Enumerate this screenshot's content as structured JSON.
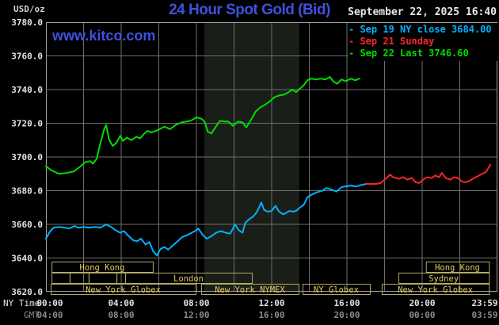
{
  "header": {
    "unit_label": "USD/oz",
    "title": "24 Hour Spot Gold (Bid)",
    "watermark": "www.kitco.com",
    "datetime": "September 22, 2025 16:40",
    "legend": [
      {
        "label": "- Sep 19 NY close 3684.00",
        "color": "#00b2ff"
      },
      {
        "label": "- Sep 21 Sunday",
        "color": "#ff2424"
      },
      {
        "label": "- Sep 22 Last 3746.60",
        "color": "#00dc00"
      }
    ]
  },
  "axes": {
    "x_row1_label": "NY Time",
    "x_row2_label": "GMT",
    "y_ticks": [
      {
        "value": 3780,
        "label": "3780.0"
      },
      {
        "value": 3760,
        "label": "3760.0"
      },
      {
        "value": 3740,
        "label": "3740.0"
      },
      {
        "value": 3720,
        "label": "3720.0"
      },
      {
        "value": 3700,
        "label": "3700.0"
      },
      {
        "value": 3680,
        "label": "3680.0"
      },
      {
        "value": 3660,
        "label": "3660.0"
      },
      {
        "value": 3640,
        "label": "3640.0"
      },
      {
        "value": 3620,
        "label": "3620.0"
      }
    ],
    "x_ticks": [
      {
        "t": 0,
        "ny": "00:00",
        "gmt": "04:00"
      },
      {
        "t": 4,
        "ny": "04:00",
        "gmt": "08:00"
      },
      {
        "t": 8,
        "ny": "08:00",
        "gmt": "12:00"
      },
      {
        "t": 12,
        "ny": "12:00",
        "gmt": "16:00"
      },
      {
        "t": 16,
        "ny": "16:00",
        "gmt": "20:00"
      },
      {
        "t": 20,
        "ny": "20:00",
        "gmt": "00:00"
      },
      {
        "t": 23.983,
        "ny": "23:59",
        "gmt": "03:59"
      }
    ]
  },
  "sessions": {
    "rows": [
      {
        "boxes": [
          {
            "label": "Hong Kong",
            "from": 0.3,
            "to": 5.68
          },
          {
            "label": "Hong Kong",
            "from": 20.2,
            "to": 23.55
          }
        ]
      },
      {
        "boxes": [
          {
            "label": "",
            "from": 0.3,
            "to": 1.26
          },
          {
            "label": "",
            "from": 1.26,
            "to": 2.27
          },
          {
            "label": "",
            "from": 2.27,
            "to": 3.75
          },
          {
            "label": "",
            "from": 3.75,
            "to": 4.21
          },
          {
            "label": "London",
            "from": 4.21,
            "to": 10.95
          },
          {
            "label": "Sydney",
            "from": 18.74,
            "to": 23.55
          }
        ]
      },
      {
        "boxes": [
          {
            "label": "New York Globex",
            "from": 0.25,
            "to": 7.96
          },
          {
            "label": "New York NYMEX",
            "from": 8.25,
            "to": 13.43
          },
          {
            "label": "NY Globex",
            "from": 13.64,
            "to": 17.22
          },
          {
            "label": "New York Globex",
            "from": 17.85,
            "to": 23.55
          }
        ]
      }
    ]
  },
  "colors": {
    "accent_blue": "#4050dd",
    "cyan": "#00b2ff",
    "red": "#ff2424",
    "green": "#00dc00",
    "grid": "#6e6e6e",
    "plot_border": "#a0a0a0",
    "session_border": "#b3a964",
    "session_text": "#e4c95e",
    "axis_text": "#e2e2e2",
    "gmt_text": "#8c8c8c",
    "shade": "#191e18"
  },
  "chart_data": {
    "type": "line",
    "title": "24 Hour Spot Gold (Bid)",
    "x_unit": "NY time, hours 0-24",
    "xlim": [
      0,
      24
    ],
    "ylim": [
      3620,
      3780
    ],
    "y_gridline_step": 20,
    "x_gridline_step_hours": 2,
    "nymex_shade": {
      "from": 8.42,
      "to": 13.47
    },
    "series": [
      {
        "name": "Sep 19 NY close 3684.00",
        "color": "#00b2ff",
        "points": [
          [
            0,
            3651.5
          ],
          [
            0.2,
            3655.5
          ],
          [
            0.4,
            3658
          ],
          [
            0.7,
            3658.5
          ],
          [
            1,
            3658
          ],
          [
            1.25,
            3657.5
          ],
          [
            1.5,
            3659
          ],
          [
            1.75,
            3658
          ],
          [
            2,
            3658.5
          ],
          [
            2.3,
            3658
          ],
          [
            2.6,
            3658.5
          ],
          [
            2.9,
            3658
          ],
          [
            3.2,
            3660
          ],
          [
            3.45,
            3658.5
          ],
          [
            3.7,
            3656.5
          ],
          [
            3.95,
            3655
          ],
          [
            4.15,
            3656
          ],
          [
            4.4,
            3653
          ],
          [
            4.65,
            3650.5
          ],
          [
            4.85,
            3650
          ],
          [
            5.05,
            3651.5
          ],
          [
            5.3,
            3648
          ],
          [
            5.5,
            3649.5
          ],
          [
            5.7,
            3644
          ],
          [
            5.9,
            3641.5
          ],
          [
            6.1,
            3645.5
          ],
          [
            6.3,
            3646.5
          ],
          [
            6.5,
            3645
          ],
          [
            6.75,
            3647.5
          ],
          [
            7,
            3650
          ],
          [
            7.25,
            3652.5
          ],
          [
            7.5,
            3653.5
          ],
          [
            7.75,
            3655
          ],
          [
            8,
            3656.5
          ],
          [
            8.1,
            3657.5
          ],
          [
            8.35,
            3653.5
          ],
          [
            8.55,
            3651.5
          ],
          [
            8.8,
            3653
          ],
          [
            9.05,
            3655
          ],
          [
            9.3,
            3656
          ],
          [
            9.55,
            3655
          ],
          [
            9.8,
            3654.5
          ],
          [
            10.05,
            3660
          ],
          [
            10.25,
            3656.5
          ],
          [
            10.45,
            3655
          ],
          [
            10.6,
            3661
          ],
          [
            10.8,
            3663
          ],
          [
            11,
            3664.5
          ],
          [
            11.2,
            3667
          ],
          [
            11.45,
            3673
          ],
          [
            11.6,
            3668.5
          ],
          [
            11.8,
            3667.5
          ],
          [
            12,
            3668
          ],
          [
            12.2,
            3671
          ],
          [
            12.4,
            3667.5
          ],
          [
            12.6,
            3666
          ],
          [
            12.8,
            3667
          ],
          [
            12.95,
            3668
          ],
          [
            13.1,
            3667.5
          ],
          [
            13.3,
            3668
          ],
          [
            13.5,
            3670
          ],
          [
            13.7,
            3671.5
          ],
          [
            13.9,
            3676
          ],
          [
            14.1,
            3677.5
          ],
          [
            14.4,
            3679
          ],
          [
            14.7,
            3680
          ],
          [
            14.9,
            3681.5
          ],
          [
            15.1,
            3681
          ],
          [
            15.45,
            3679.5
          ],
          [
            15.7,
            3682
          ],
          [
            15.9,
            3682.5
          ],
          [
            16.2,
            3683
          ],
          [
            16.5,
            3682.5
          ],
          [
            16.8,
            3683.5
          ],
          [
            17.05,
            3684
          ]
        ]
      },
      {
        "name": "Sep 21 Sunday",
        "color": "#ff2424",
        "points": [
          [
            17.05,
            3684
          ],
          [
            17.3,
            3684
          ],
          [
            17.55,
            3684
          ],
          [
            17.8,
            3684.5
          ],
          [
            17.95,
            3686
          ],
          [
            18.15,
            3688
          ],
          [
            18.3,
            3689.5
          ],
          [
            18.45,
            3688
          ],
          [
            18.6,
            3687.5
          ],
          [
            18.75,
            3687
          ],
          [
            19,
            3688
          ],
          [
            19.2,
            3686.5
          ],
          [
            19.45,
            3687.5
          ],
          [
            19.65,
            3685
          ],
          [
            19.85,
            3684.5
          ],
          [
            20.1,
            3687
          ],
          [
            20.3,
            3688
          ],
          [
            20.5,
            3687.5
          ],
          [
            20.7,
            3689
          ],
          [
            20.9,
            3688
          ],
          [
            21.05,
            3690.5
          ],
          [
            21.25,
            3687.5
          ],
          [
            21.5,
            3686.5
          ],
          [
            21.7,
            3688
          ],
          [
            21.9,
            3687.5
          ],
          [
            22.1,
            3685.5
          ],
          [
            22.3,
            3685
          ],
          [
            22.5,
            3685.7
          ],
          [
            22.75,
            3687.5
          ],
          [
            23,
            3688.8
          ],
          [
            23.2,
            3690
          ],
          [
            23.4,
            3691.2
          ],
          [
            23.55,
            3694
          ],
          [
            23.62,
            3695.5
          ]
        ]
      },
      {
        "name": "Sep 22 Last 3746.60",
        "color": "#00dc00",
        "points": [
          [
            0,
            3694.5
          ],
          [
            0.3,
            3692
          ],
          [
            0.7,
            3690
          ],
          [
            1.1,
            3690.5
          ],
          [
            1.5,
            3691.5
          ],
          [
            1.9,
            3695
          ],
          [
            2.1,
            3697
          ],
          [
            2.35,
            3697.5
          ],
          [
            2.5,
            3696
          ],
          [
            2.7,
            3699
          ],
          [
            2.9,
            3708.5
          ],
          [
            3.1,
            3716.5
          ],
          [
            3.2,
            3719
          ],
          [
            3.35,
            3710.5
          ],
          [
            3.55,
            3706.5
          ],
          [
            3.75,
            3708.5
          ],
          [
            3.95,
            3712.5
          ],
          [
            4.1,
            3709.5
          ],
          [
            4.3,
            3711.5
          ],
          [
            4.55,
            3710
          ],
          [
            4.8,
            3712
          ],
          [
            5,
            3711
          ],
          [
            5.2,
            3713.5
          ],
          [
            5.4,
            3715.5
          ],
          [
            5.6,
            3714.5
          ],
          [
            5.85,
            3715.5
          ],
          [
            6.05,
            3716.5
          ],
          [
            6.3,
            3718
          ],
          [
            6.6,
            3716.5
          ],
          [
            6.9,
            3719
          ],
          [
            7.2,
            3720.5
          ],
          [
            7.45,
            3721
          ],
          [
            7.7,
            3721.5
          ],
          [
            8,
            3723.5
          ],
          [
            8.3,
            3722.5
          ],
          [
            8.45,
            3720.5
          ],
          [
            8.6,
            3715
          ],
          [
            8.8,
            3714
          ],
          [
            9,
            3717.5
          ],
          [
            9.25,
            3721.5
          ],
          [
            9.5,
            3721
          ],
          [
            9.7,
            3721
          ],
          [
            9.95,
            3718.5
          ],
          [
            10.2,
            3721
          ],
          [
            10.45,
            3720.5
          ],
          [
            10.65,
            3717.5
          ],
          [
            10.9,
            3722
          ],
          [
            11.15,
            3727
          ],
          [
            11.4,
            3729.5
          ],
          [
            11.65,
            3731
          ],
          [
            11.9,
            3733
          ],
          [
            12.15,
            3735.5
          ],
          [
            12.4,
            3736.5
          ],
          [
            12.65,
            3737
          ],
          [
            12.9,
            3738.5
          ],
          [
            13.1,
            3740
          ],
          [
            13.3,
            3738.5
          ],
          [
            13.5,
            3740.5
          ],
          [
            13.7,
            3742.5
          ],
          [
            13.9,
            3745.5
          ],
          [
            14.1,
            3746.5
          ],
          [
            14.35,
            3746
          ],
          [
            14.6,
            3746.5
          ],
          [
            14.85,
            3746
          ],
          [
            15.1,
            3747.5
          ],
          [
            15.3,
            3744.5
          ],
          [
            15.5,
            3743.5
          ],
          [
            15.7,
            3746
          ],
          [
            15.95,
            3745
          ],
          [
            16.2,
            3746.5
          ],
          [
            16.45,
            3745.5
          ],
          [
            16.67,
            3746.6
          ]
        ]
      }
    ]
  }
}
